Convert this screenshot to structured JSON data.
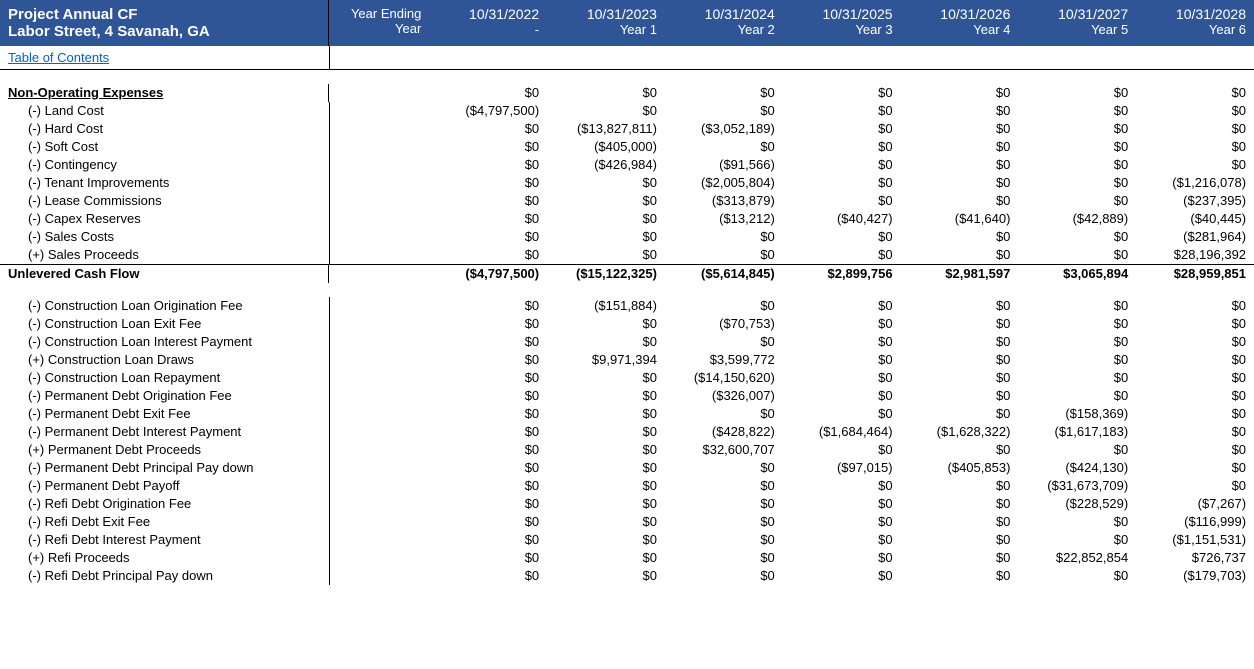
{
  "header": {
    "title1": "Project Annual CF",
    "title2": "Labor Street, 4 Savanah, GA",
    "year_ending_label": "Year Ending",
    "year_label": "Year",
    "columns": [
      {
        "date": "10/31/2022",
        "yr": "-"
      },
      {
        "date": "10/31/2023",
        "yr": "Year 1"
      },
      {
        "date": "10/31/2024",
        "yr": "Year 2"
      },
      {
        "date": "10/31/2025",
        "yr": "Year 3"
      },
      {
        "date": "10/31/2026",
        "yr": "Year 4"
      },
      {
        "date": "10/31/2027",
        "yr": "Year 5"
      },
      {
        "date": "10/31/2028",
        "yr": "Year 6"
      }
    ]
  },
  "toc_label": "Table of Contents",
  "section_title": "Non-Operating Expenses",
  "section_totals": [
    "$0",
    "$0",
    "$0",
    "$0",
    "$0",
    "$0",
    "$0"
  ],
  "rows1": [
    {
      "label": "(-) Land Cost",
      "v": [
        "($4,797,500)",
        "$0",
        "$0",
        "$0",
        "$0",
        "$0",
        "$0"
      ]
    },
    {
      "label": "(-) Hard Cost",
      "v": [
        "$0",
        "($13,827,811)",
        "($3,052,189)",
        "$0",
        "$0",
        "$0",
        "$0"
      ]
    },
    {
      "label": "(-) Soft Cost",
      "v": [
        "$0",
        "($405,000)",
        "$0",
        "$0",
        "$0",
        "$0",
        "$0"
      ]
    },
    {
      "label": "(-) Contingency",
      "v": [
        "$0",
        "($426,984)",
        "($91,566)",
        "$0",
        "$0",
        "$0",
        "$0"
      ]
    },
    {
      "label": "(-) Tenant Improvements",
      "v": [
        "$0",
        "$0",
        "($2,005,804)",
        "$0",
        "$0",
        "$0",
        "($1,216,078)"
      ]
    },
    {
      "label": "(-) Lease Commissions",
      "v": [
        "$0",
        "$0",
        "($313,879)",
        "$0",
        "$0",
        "$0",
        "($237,395)"
      ]
    },
    {
      "label": "(-) Capex Reserves",
      "v": [
        "$0",
        "$0",
        "($13,212)",
        "($40,427)",
        "($41,640)",
        "($42,889)",
        "($40,445)"
      ]
    },
    {
      "label": "(-) Sales Costs",
      "v": [
        "$0",
        "$0",
        "$0",
        "$0",
        "$0",
        "$0",
        "($281,964)"
      ]
    },
    {
      "label": "(+) Sales Proceeds",
      "v": [
        "$0",
        "$0",
        "$0",
        "$0",
        "$0",
        "$0",
        "$28,196,392"
      ]
    }
  ],
  "unlevered_label": "Unlevered Cash Flow",
  "unlevered": [
    "($4,797,500)",
    "($15,122,325)",
    "($5,614,845)",
    "$2,899,756",
    "$2,981,597",
    "$3,065,894",
    "$28,959,851"
  ],
  "rows2": [
    {
      "label": "(-) Construction Loan Origination Fee",
      "v": [
        "$0",
        "($151,884)",
        "$0",
        "$0",
        "$0",
        "$0",
        "$0"
      ]
    },
    {
      "label": "(-) Construction Loan Exit Fee",
      "v": [
        "$0",
        "$0",
        "($70,753)",
        "$0",
        "$0",
        "$0",
        "$0"
      ]
    },
    {
      "label": "(-) Construction Loan Interest Payment",
      "v": [
        "$0",
        "$0",
        "$0",
        "$0",
        "$0",
        "$0",
        "$0"
      ]
    },
    {
      "label": "(+) Construction Loan Draws",
      "v": [
        "$0",
        "$9,971,394",
        "$3,599,772",
        "$0",
        "$0",
        "$0",
        "$0"
      ]
    },
    {
      "label": "(-) Construction Loan Repayment",
      "v": [
        "$0",
        "$0",
        "($14,150,620)",
        "$0",
        "$0",
        "$0",
        "$0"
      ]
    },
    {
      "label": "(-) Permanent Debt Origination Fee",
      "v": [
        "$0",
        "$0",
        "($326,007)",
        "$0",
        "$0",
        "$0",
        "$0"
      ]
    },
    {
      "label": "(-) Permanent Debt Exit Fee",
      "v": [
        "$0",
        "$0",
        "$0",
        "$0",
        "$0",
        "($158,369)",
        "$0"
      ]
    },
    {
      "label": "(-) Permanent Debt Interest Payment",
      "v": [
        "$0",
        "$0",
        "($428,822)",
        "($1,684,464)",
        "($1,628,322)",
        "($1,617,183)",
        "$0"
      ]
    },
    {
      "label": "(+) Permanent Debt Proceeds",
      "v": [
        "$0",
        "$0",
        "$32,600,707",
        "$0",
        "$0",
        "$0",
        "$0"
      ]
    },
    {
      "label": "(-) Permanent Debt Principal Pay down",
      "v": [
        "$0",
        "$0",
        "$0",
        "($97,015)",
        "($405,853)",
        "($424,130)",
        "$0"
      ]
    },
    {
      "label": "(-) Permanent Debt Payoff",
      "v": [
        "$0",
        "$0",
        "$0",
        "$0",
        "$0",
        "($31,673,709)",
        "$0"
      ]
    },
    {
      "label": "(-) Refi Debt Origination Fee",
      "v": [
        "$0",
        "$0",
        "$0",
        "$0",
        "$0",
        "($228,529)",
        "($7,267)"
      ]
    },
    {
      "label": "(-) Refi Debt Exit Fee",
      "v": [
        "$0",
        "$0",
        "$0",
        "$0",
        "$0",
        "$0",
        "($116,999)"
      ]
    },
    {
      "label": "(-) Refi Debt Interest Payment",
      "v": [
        "$0",
        "$0",
        "$0",
        "$0",
        "$0",
        "$0",
        "($1,151,531)"
      ]
    },
    {
      "label": "(+) Refi Proceeds",
      "v": [
        "$0",
        "$0",
        "$0",
        "$0",
        "$0",
        "$22,852,854",
        "$726,737"
      ]
    },
    {
      "label": "(-) Refi Debt Principal Pay down",
      "v": [
        "$0",
        "$0",
        "$0",
        "$0",
        "$0",
        "$0",
        "($179,703)"
      ]
    }
  ],
  "colors": {
    "header_bg": "#2f5597",
    "header_text": "#ffffff",
    "link": "#0563c1",
    "border": "#000000"
  }
}
